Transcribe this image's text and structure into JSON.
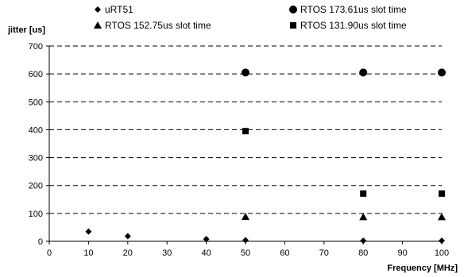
{
  "chart_data": {
    "type": "scatter",
    "xlabel": "Frequency [MHz]",
    "ylabel": "jitter [us]",
    "xlim": [
      0,
      100
    ],
    "ylim": [
      0,
      700
    ],
    "xticks": [
      0,
      10,
      20,
      30,
      40,
      50,
      60,
      70,
      80,
      90,
      100
    ],
    "yticks": [
      0,
      100,
      200,
      300,
      400,
      500,
      600,
      700
    ],
    "grid": "horizontal dashed",
    "legend_position": "top",
    "series": [
      {
        "name": "uRT51",
        "marker": "diamond",
        "color": "#000000",
        "points": [
          [
            10,
            35
          ],
          [
            20,
            18
          ],
          [
            40,
            8
          ],
          [
            50,
            4
          ],
          [
            80,
            2
          ],
          [
            100,
            2
          ]
        ]
      },
      {
        "name": "RTOS 173.61us slot time",
        "marker": "circle",
        "color": "#000000",
        "points": [
          [
            50,
            605
          ],
          [
            80,
            605
          ],
          [
            100,
            605
          ]
        ]
      },
      {
        "name": "RTOS 152.75us slot time",
        "marker": "triangle",
        "color": "#000000",
        "points": [
          [
            50,
            88
          ],
          [
            80,
            87
          ],
          [
            100,
            87
          ]
        ]
      },
      {
        "name": "RTOS 131.90us slot time",
        "marker": "square",
        "color": "#000000",
        "points": [
          [
            50,
            395
          ],
          [
            80,
            171
          ],
          [
            100,
            171
          ]
        ]
      }
    ]
  }
}
